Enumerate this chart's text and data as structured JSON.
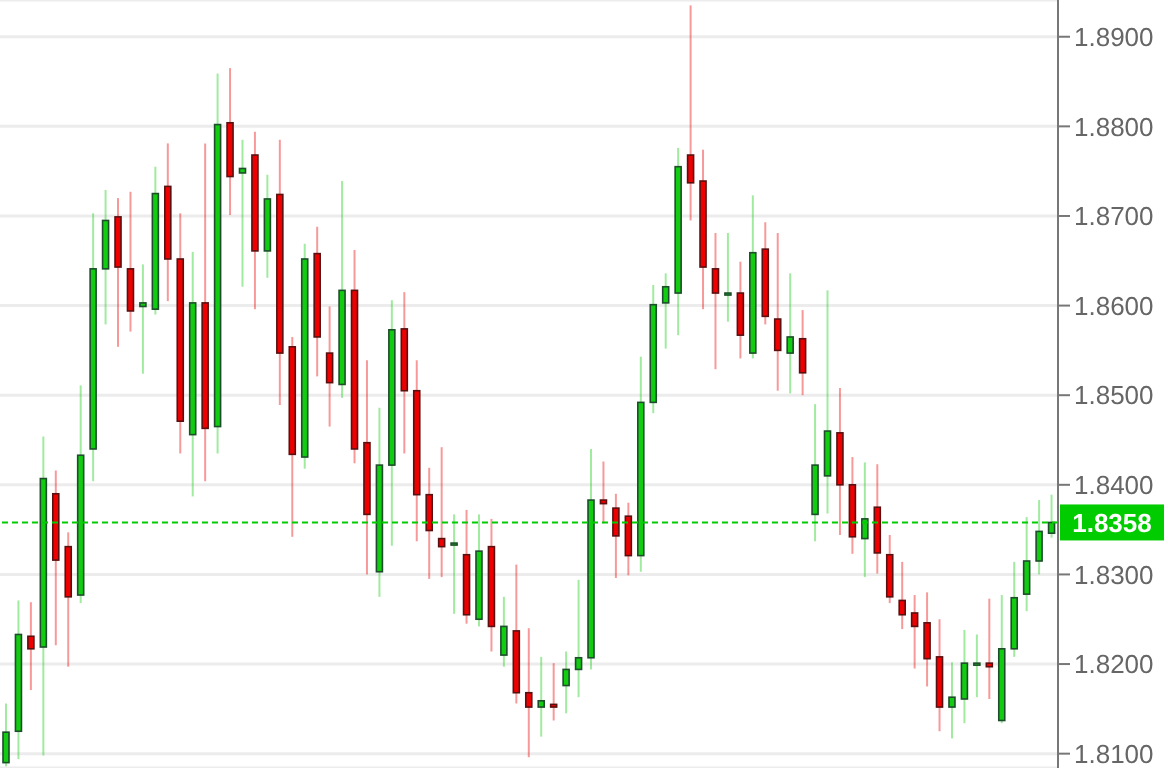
{
  "chart_data": {
    "type": "candlestick",
    "categories": [
      null,
      null,
      null,
      null,
      null,
      null,
      null,
      null,
      null,
      null,
      null,
      null,
      null,
      null,
      null,
      null,
      null,
      null,
      null,
      null,
      null,
      null,
      null,
      null,
      null,
      null,
      null,
      null,
      null,
      null,
      null,
      null,
      null,
      null,
      null,
      null,
      null,
      null,
      null,
      null,
      null,
      null,
      null,
      null,
      null,
      null,
      null,
      null,
      null,
      null,
      null,
      null,
      null,
      null,
      null,
      null,
      null,
      null,
      null,
      null,
      null,
      null,
      null,
      null,
      null,
      null,
      null,
      null,
      null,
      null,
      null,
      null,
      null,
      null,
      null,
      null,
      null,
      null,
      null,
      null,
      null,
      null,
      null,
      null,
      null
    ],
    "ohlc": [
      [
        1.809,
        1.8156,
        1.8086,
        1.8124
      ],
      [
        1.8125,
        1.8271,
        1.8094,
        1.8233
      ],
      [
        1.8231,
        1.8269,
        1.8171,
        1.8217
      ],
      [
        1.8219,
        1.8454,
        1.8098,
        1.8407
      ],
      [
        1.839,
        1.8416,
        1.8221,
        1.8316
      ],
      [
        1.8331,
        1.8347,
        1.8197,
        1.8275
      ],
      [
        1.8277,
        1.8511,
        1.8268,
        1.8433
      ],
      [
        1.844,
        1.8703,
        1.8404,
        1.8641
      ],
      [
        1.8641,
        1.8729,
        1.8579,
        1.8695
      ],
      [
        1.8699,
        1.872,
        1.8554,
        1.8643
      ],
      [
        1.8641,
        1.8727,
        1.8571,
        1.8594
      ],
      [
        1.8599,
        1.8646,
        1.8524,
        1.8603
      ],
      [
        1.8596,
        1.8755,
        1.859,
        1.8725
      ],
      [
        1.8733,
        1.8781,
        1.8605,
        1.8652
      ],
      [
        1.8652,
        1.8703,
        1.8435,
        1.8471
      ],
      [
        1.8456,
        1.866,
        1.8387,
        1.8603
      ],
      [
        1.8603,
        1.8781,
        1.8404,
        1.8463
      ],
      [
        1.8465,
        1.8859,
        1.8435,
        1.8802
      ],
      [
        1.8804,
        1.8865,
        1.8701,
        1.8744
      ],
      [
        1.8748,
        1.8785,
        1.8621,
        1.8753
      ],
      [
        1.8768,
        1.8794,
        1.8596,
        1.8661
      ],
      [
        1.8661,
        1.8746,
        1.8631,
        1.8719
      ],
      [
        1.8724,
        1.8785,
        1.8489,
        1.8547
      ],
      [
        1.8554,
        1.8565,
        1.8342,
        1.8434
      ],
      [
        1.8431,
        1.8669,
        1.8418,
        1.8652
      ],
      [
        1.8658,
        1.8688,
        1.8521,
        1.8565
      ],
      [
        1.8547,
        1.8599,
        1.8465,
        1.8514
      ],
      [
        1.8512,
        1.8739,
        1.8497,
        1.8617
      ],
      [
        1.8617,
        1.8662,
        1.8424,
        1.844
      ],
      [
        1.8447,
        1.8539,
        1.83,
        1.8367
      ],
      [
        1.8303,
        1.8486,
        1.8275,
        1.8422
      ],
      [
        1.8422,
        1.8606,
        1.8332,
        1.8573
      ],
      [
        1.8574,
        1.8615,
        1.8435,
        1.8505
      ],
      [
        1.8505,
        1.8539,
        1.8337,
        1.8389
      ],
      [
        1.8389,
        1.8419,
        1.8295,
        1.8349
      ],
      [
        1.834,
        1.8442,
        1.8297,
        1.8331
      ],
      [
        1.8335,
        1.8367,
        1.8256,
        1.8335
      ],
      [
        1.8322,
        1.8372,
        1.8245,
        1.8255
      ],
      [
        1.825,
        1.8367,
        1.8242,
        1.8326
      ],
      [
        1.8331,
        1.8362,
        1.8214,
        1.8242
      ],
      [
        1.821,
        1.8275,
        1.8197,
        1.8242
      ],
      [
        1.8237,
        1.8311,
        1.8156,
        1.8168
      ],
      [
        1.8168,
        1.824,
        1.8096,
        1.8152
      ],
      [
        1.8152,
        1.8208,
        1.8119,
        1.8159
      ],
      [
        1.8155,
        1.8201,
        1.8137,
        1.8152
      ],
      [
        1.8176,
        1.8214,
        1.8145,
        1.8194
      ],
      [
        1.8194,
        1.8294,
        1.8163,
        1.8207
      ],
      [
        1.8207,
        1.844,
        1.8194,
        1.8383
      ],
      [
        1.8383,
        1.8426,
        1.8357,
        1.8379
      ],
      [
        1.8374,
        1.839,
        1.8296,
        1.8343
      ],
      [
        1.8365,
        1.838,
        1.8299,
        1.8321
      ],
      [
        1.8321,
        1.8543,
        1.8303,
        1.8492
      ],
      [
        1.8492,
        1.8623,
        1.848,
        1.8601
      ],
      [
        1.8603,
        1.8636,
        1.8552,
        1.8621
      ],
      [
        1.8614,
        1.8776,
        1.8567,
        1.8755
      ],
      [
        1.8768,
        1.8935,
        1.8695,
        1.8737
      ],
      [
        1.8739,
        1.8774,
        1.8596,
        1.8643
      ],
      [
        1.8641,
        1.8681,
        1.8529,
        1.8614
      ],
      [
        1.8614,
        1.8681,
        1.8582,
        1.8614
      ],
      [
        1.8614,
        1.8649,
        1.8541,
        1.8567
      ],
      [
        1.8547,
        1.8723,
        1.8541,
        1.8659
      ],
      [
        1.8663,
        1.8693,
        1.8579,
        1.8588
      ],
      [
        1.8585,
        1.8681,
        1.8505,
        1.855
      ],
      [
        1.8547,
        1.8636,
        1.8502,
        1.8565
      ],
      [
        1.8563,
        1.8595,
        1.85,
        1.8525
      ],
      [
        1.8367,
        1.849,
        1.8337,
        1.8422
      ],
      [
        1.841,
        1.8617,
        1.8368,
        1.846
      ],
      [
        1.8458,
        1.8508,
        1.8344,
        1.84
      ],
      [
        1.84,
        1.8431,
        1.8323,
        1.8342
      ],
      [
        1.834,
        1.8425,
        1.8297,
        1.8362
      ],
      [
        1.8375,
        1.8423,
        1.8301,
        1.8324
      ],
      [
        1.8322,
        1.8344,
        1.8268,
        1.8275
      ],
      [
        1.8271,
        1.8314,
        1.8239,
        1.8255
      ],
      [
        1.8257,
        1.8277,
        1.8195,
        1.8242
      ],
      [
        1.8246,
        1.828,
        1.8175,
        1.8206
      ],
      [
        1.8208,
        1.825,
        1.8125,
        1.8152
      ],
      [
        1.8152,
        1.8202,
        1.8117,
        1.8163
      ],
      [
        1.8161,
        1.8238,
        1.8134,
        1.8201
      ],
      [
        1.8201,
        1.8233,
        1.8163,
        1.8201
      ],
      [
        1.8201,
        1.8273,
        1.8161,
        1.8197
      ],
      [
        1.8137,
        1.8277,
        1.8134,
        1.8217
      ],
      [
        1.8217,
        1.8314,
        1.8208,
        1.8274
      ],
      [
        1.8278,
        1.8364,
        1.8259,
        1.8315
      ],
      [
        1.8315,
        1.8383,
        1.83,
        1.8348
      ],
      [
        1.8346,
        1.8389,
        1.8341,
        1.8358
      ]
    ],
    "colors": [
      "#11cc11",
      "#11cc11",
      "#ee0000",
      "#11cc11",
      "#ee0000",
      "#ee0000",
      "#11cc11",
      "#11cc11",
      "#11cc11",
      "#ee0000",
      "#ee0000",
      "#11cc11",
      "#11cc11",
      "#ee0000",
      "#ee0000",
      "#11cc11",
      "#ee0000",
      "#11cc11",
      "#ee0000",
      "#11cc11",
      "#ee0000",
      "#11cc11",
      "#ee0000",
      "#ee0000",
      "#11cc11",
      "#ee0000",
      "#ee0000",
      "#11cc11",
      "#ee0000",
      "#ee0000",
      "#11cc11",
      "#11cc11",
      "#ee0000",
      "#ee0000",
      "#ee0000",
      "#ee0000",
      "#11cc11",
      "#ee0000",
      "#11cc11",
      "#ee0000",
      "#11cc11",
      "#ee0000",
      "#ee0000",
      "#11cc11",
      "#ee0000",
      "#11cc11",
      "#11cc11",
      "#11cc11",
      "#ee0000",
      "#ee0000",
      "#ee0000",
      "#11cc11",
      "#11cc11",
      "#11cc11",
      "#11cc11",
      "#ee0000",
      "#ee0000",
      "#ee0000",
      "#11cc11",
      "#ee0000",
      "#11cc11",
      "#ee0000",
      "#ee0000",
      "#11cc11",
      "#ee0000",
      "#11cc11",
      "#11cc11",
      "#ee0000",
      "#ee0000",
      "#11cc11",
      "#ee0000",
      "#ee0000",
      "#ee0000",
      "#ee0000",
      "#ee0000",
      "#ee0000",
      "#11cc11",
      "#11cc11",
      "#11cc11",
      "#ee0000",
      "#11cc11",
      "#11cc11",
      "#11cc11",
      "#11cc11",
      "#11cc11"
    ],
    "ylim": [
      1.8084,
      1.8941
    ],
    "yticks": [
      {
        "value": 1.81,
        "label": "1.8100"
      },
      {
        "value": 1.82,
        "label": "1.8200"
      },
      {
        "value": 1.83,
        "label": "1.8300"
      },
      {
        "value": 1.84,
        "label": "1.8400"
      },
      {
        "value": 1.85,
        "label": "1.8500"
      },
      {
        "value": 1.86,
        "label": "1.8600"
      },
      {
        "value": 1.87,
        "label": "1.8700"
      },
      {
        "value": 1.88,
        "label": "1.8800"
      },
      {
        "value": 1.89,
        "label": "1.8900"
      }
    ],
    "ref_lines": [
      {
        "axis": "y",
        "value": 1.8358,
        "label": "1.8358",
        "color": "#00cc00",
        "line_style": "dashed"
      }
    ],
    "grid": "y",
    "tick_labels": "y"
  }
}
